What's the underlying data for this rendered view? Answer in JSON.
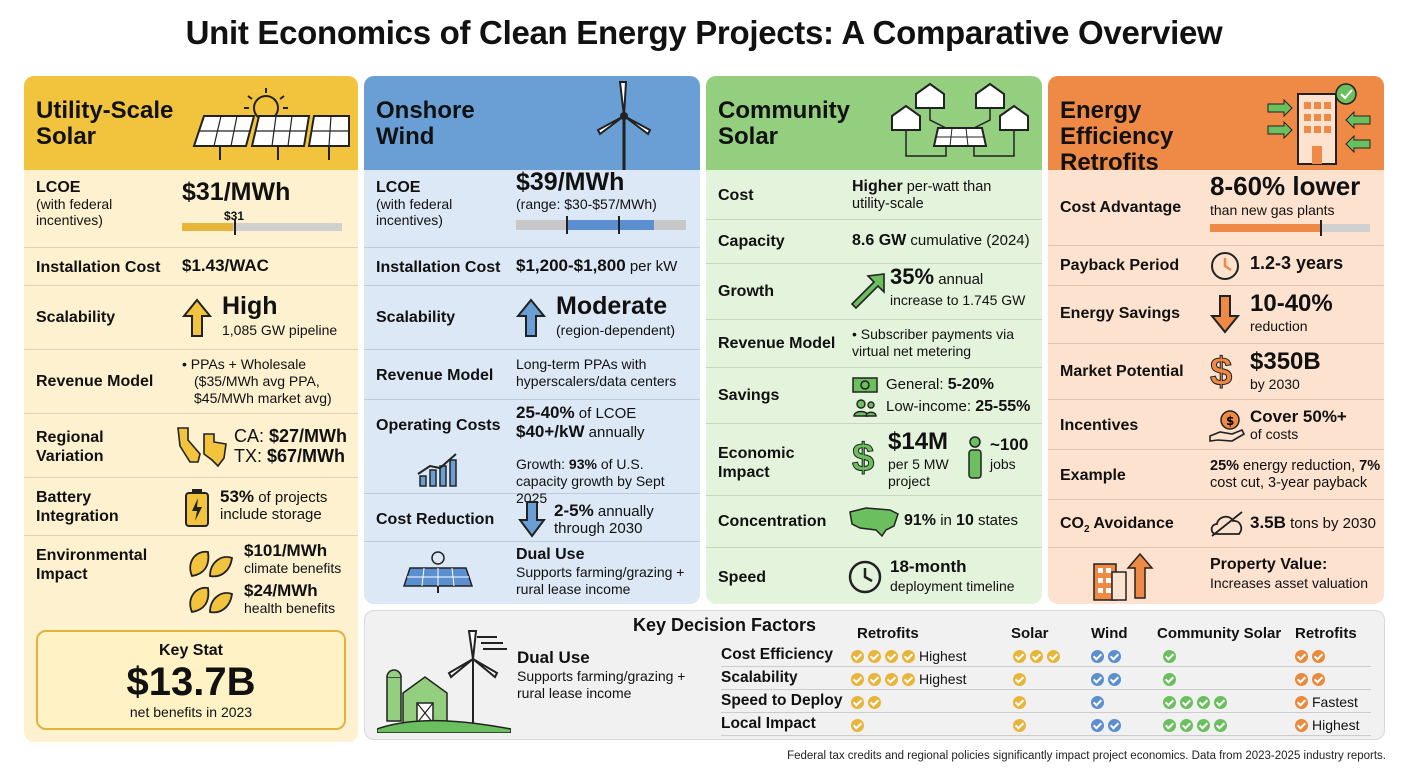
{
  "title": "Unit Economics of Clean Energy Projects: A Comparative Overview",
  "solar": {
    "header": "Utility-Scale\nSolar",
    "lcoe_label": "LCOE",
    "lcoe_sub": "(with federal incentives)",
    "lcoe_value": "$31/MWh",
    "lcoe_marker": "$31",
    "install_label": "Installation Cost",
    "install_value": "$1.43/WAC",
    "scal_label": "Scalability",
    "scal_value": "High",
    "scal_sub": "1,085 GW pipeline",
    "rev_label": "Revenue Model",
    "rev_value": "• PPAs + Wholesale",
    "rev_sub": "($35/MWh avg PPA, $45/MWh market avg)",
    "reg_label": "Regional Variation",
    "reg_ca": "CA: ",
    "reg_ca_v": "$27/MWh",
    "reg_tx": "TX: ",
    "reg_tx_v": "$67/MWh",
    "bat_label": "Battery Integration",
    "bat_value": "53%",
    "bat_rest": " of projects",
    "bat_sub": "include storage",
    "env_label": "Environmental Impact",
    "env_v1": "$101/MWh",
    "env_s1": "climate benefits",
    "env_v2": "$24/MWh",
    "env_s2": "health benefits",
    "key_title": "Key Stat",
    "key_value": "$13.7B",
    "key_sub": "net benefits in 2023"
  },
  "wind": {
    "header": "Onshore\nWind",
    "lcoe_label": "LCOE",
    "lcoe_sub": "(with federal incentives)",
    "lcoe_value": "$39/MWh",
    "lcoe_range": "(range: $30-$57/MWh)",
    "install_label": "Installation Cost",
    "install_value": "$1,200-$1,800",
    "install_unit": " per kW",
    "scal_label": "Scalability",
    "scal_value": "Moderate",
    "scal_sub": "(region-dependent)",
    "rev_label": "Revenue Model",
    "rev_value": "Long-term PPAs with hyperscalers/data centers",
    "op_label": "Operating Costs",
    "op_v1": "25-40%",
    "op_v1b": " of LCOE",
    "op_v2": "$40+/kW",
    "op_v2b": " annually",
    "growth_a": "Growth: ",
    "growth_b": "93%",
    "growth_c": " of U.S. capacity growth by Sept 2025",
    "cr_label": "Cost Reduction",
    "cr_value": "2-5%",
    "cr_rest": " annually",
    "cr_sub": "through 2030",
    "du_title": "Dual Use",
    "du_sub": "Supports farming/grazing + rural lease income"
  },
  "community": {
    "header": "Community\nSolar",
    "cost_label": "Cost",
    "cost_b": "Higher",
    "cost_rest": " per-watt than utility-scale",
    "cap_label": "Capacity",
    "cap_b": "8.6 GW",
    "cap_rest": " cumulative (2024)",
    "gr_label": "Growth",
    "gr_b": "35%",
    "gr_rest": " annual",
    "gr_sub": "increase to 1.745 GW",
    "rev_label": "Revenue Model",
    "rev_value": "• Subscriber payments via virtual net metering",
    "sav_label": "Savings",
    "sav_g": "General: ",
    "sav_gv": "5-20%",
    "sav_l": "Low-income: ",
    "sav_lv": "25-55%",
    "eco_label": "Economic Impact",
    "eco_v": "$14M",
    "eco_sub": "per 5 MW project",
    "eco_jobs": "~100",
    "eco_jobs_sub": "jobs",
    "con_label": "Concentration",
    "con_b1": "91%",
    "con_m": " in ",
    "con_b2": "10",
    "con_r": " states",
    "spd_label": "Speed",
    "spd_b": "18-month",
    "spd_sub": "deployment timeline"
  },
  "retro": {
    "header": "Energy Efficiency\nRetrofits",
    "ca_label": "Cost Advantage",
    "ca_value": "8-60% lower",
    "ca_sub": "than new gas plants",
    "pp_label": "Payback Period",
    "pp_value": "1.2-3 years",
    "es_label": "Energy Savings",
    "es_value": "10-40%",
    "es_sub": "reduction",
    "mp_label": "Market Potential",
    "mp_value": "$350B",
    "mp_sub": "by 2030",
    "inc_label": "Incentives",
    "inc_value": "Cover 50%+",
    "inc_sub": "of costs",
    "ex_label": "Example",
    "ex_b1": "25%",
    "ex_m": " energy reduction, ",
    "ex_b2": "7%",
    "ex_r": " cost cut, 3-year payback",
    "co2_label": "CO",
    "co2_sub": "2",
    "co2_label2": " Avoidance",
    "co2_b": "3.5B",
    "co2_r": " tons by 2030",
    "pv_title": "Property Value:",
    "pv_sub": "Increases asset valuation"
  },
  "decision": {
    "dual_title": "Dual Use",
    "dual_sub": "Supports farming/grazing + rural lease income",
    "title": "Key Decision Factors",
    "cols": [
      "Retrofits",
      "Solar",
      "Wind",
      "Community Solar",
      "Retrofits"
    ],
    "rows": [
      {
        "label": "Cost Efficiency",
        "solar": 4,
        "solar_note": "Highest",
        "wind": 2,
        "community": 1,
        "retro": 2,
        "retro_note": ""
      },
      {
        "label": "Scalability",
        "solar": 4,
        "solar_note": "Highest",
        "wind": 2,
        "community": 1,
        "retro": 2,
        "retro_note": ""
      },
      {
        "label": "Speed to Deploy",
        "solar": 2,
        "solar_note": "",
        "wind": 1,
        "community": 4,
        "retro": 1,
        "retro_note": "Fastest"
      },
      {
        "label": "Local Impact",
        "solar": 1,
        "solar_note": "",
        "wind": 2,
        "community": 4,
        "retro": 1,
        "retro_note": "Highest"
      }
    ],
    "extra": {
      "solar": [
        3,
        1,
        1,
        1
      ],
      "wind": [
        0,
        0,
        0,
        0
      ]
    }
  },
  "footer": "Federal tax credits and regional policies significantly impact project economics. Data from 2023-2025 industry reports.",
  "colors": {
    "solar": "#f2c43d",
    "solar_bg": "#fdf1cf",
    "wind": "#6a9fd6",
    "wind_bg": "#dce8f5",
    "community": "#93cf7f",
    "community_bg": "#e4f3dc",
    "retro": "#ee8a46",
    "retro_bg": "#fde2cf"
  }
}
